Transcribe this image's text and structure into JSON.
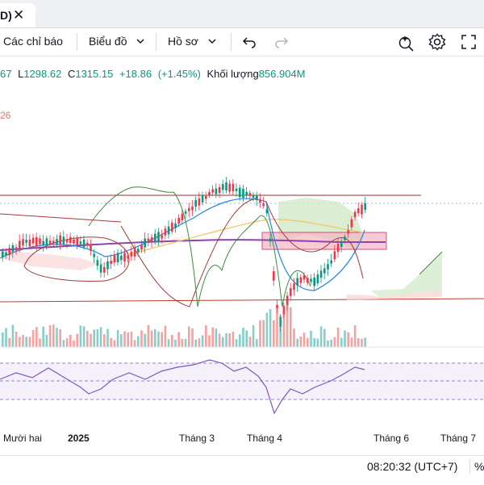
{
  "tab": {
    "title_fragment": "D)",
    "close_glyph": "✕"
  },
  "toolbar": {
    "indicators_label": "Các chỉ báo",
    "chart_type_label": "Biểu đồ",
    "profile_label": "Hồ sơ",
    "icons": [
      "undo-icon",
      "redo-icon",
      "quick-search-icon",
      "gear-icon",
      "fullscreen-icon"
    ]
  },
  "legend": {
    "open_fragment": "67",
    "low_key": "L",
    "low": "1298.62",
    "close_key": "C",
    "close": "1315.15",
    "change": "+18.86",
    "change_pct": "(+1.45%)",
    "volume_label": "Khối lượng",
    "volume": "856.904M",
    "indicator2_value_fragment": "26"
  },
  "time_axis": {
    "labels": [
      "Mười hai",
      "2025",
      "Tháng 3",
      "Tháng 4",
      "Tháng 6",
      "Tháng 7"
    ]
  },
  "status": {
    "clock": "08:20:32 (UTC+7)",
    "percent_glyph": "%"
  },
  "colors": {
    "up": "#089981",
    "down": "#f23645",
    "rsi": "#7e57c2"
  }
}
